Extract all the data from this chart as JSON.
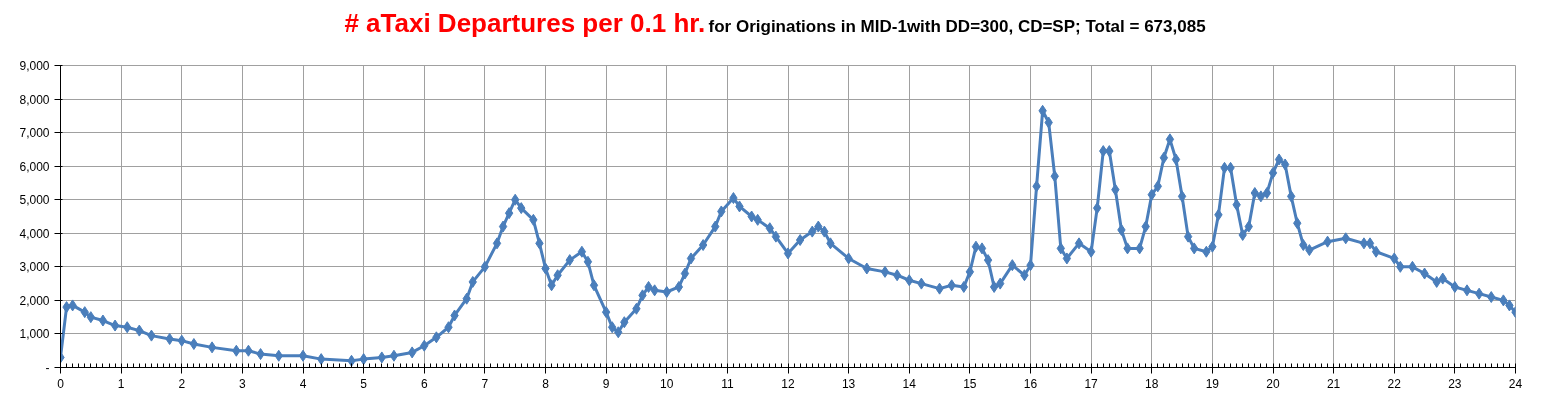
{
  "chart_data": {
    "type": "line",
    "title": "# aTaxi Departures per 0.1 hr.",
    "subtitle": "for Originations in MID-1with DD=300, CD=SP; Total = 673,085",
    "xlim": [
      0,
      24
    ],
    "xticks": [
      0,
      1,
      2,
      3,
      4,
      5,
      6,
      7,
      8,
      9,
      10,
      11,
      12,
      13,
      14,
      15,
      16,
      17,
      18,
      19,
      20,
      21,
      22,
      23,
      24
    ],
    "ylim": [
      0,
      9000
    ],
    "yticks": [
      {
        "value": 0,
        "label": "-"
      },
      {
        "value": 1000,
        "label": "1,000"
      },
      {
        "value": 2000,
        "label": "2,000"
      },
      {
        "value": 3000,
        "label": "3,000"
      },
      {
        "value": 4000,
        "label": "4,000"
      },
      {
        "value": 5000,
        "label": "5,000"
      },
      {
        "value": 6000,
        "label": "6,000"
      },
      {
        "value": 7000,
        "label": "7,000"
      },
      {
        "value": 8000,
        "label": "8,000"
      },
      {
        "value": 9000,
        "label": "9,000"
      }
    ],
    "grid": true,
    "marker": "diamond",
    "line_style": "solid",
    "series": [
      {
        "color": "#4a7ebb",
        "x": [
          0,
          0.1,
          0.2,
          0.4,
          0.5,
          0.7,
          0.9,
          1.1,
          1.3,
          1.5,
          1.8,
          2.0,
          2.2,
          2.5,
          2.9,
          3.1,
          3.3,
          3.6,
          4.0,
          4.3,
          4.8,
          5.0,
          5.3,
          5.5,
          5.8,
          6.0,
          6.2,
          6.4,
          6.5,
          6.7,
          6.8,
          7.0,
          7.2,
          7.3,
          7.4,
          7.5,
          7.6,
          7.8,
          7.9,
          8.0,
          8.1,
          8.2,
          8.4,
          8.6,
          8.7,
          8.8,
          9.0,
          9.1,
          9.2,
          9.3,
          9.5,
          9.6,
          9.7,
          9.8,
          10.0,
          10.2,
          10.3,
          10.4,
          10.6,
          10.8,
          10.9,
          11.1,
          11.2,
          11.4,
          11.5,
          11.7,
          11.8,
          12.0,
          12.2,
          12.4,
          12.5,
          12.6,
          12.7,
          13.0,
          13.3,
          13.6,
          13.8,
          14.0,
          14.2,
          14.5,
          14.7,
          14.9,
          15.0,
          15.1,
          15.2,
          15.3,
          15.4,
          15.5,
          15.7,
          15.9,
          16.0,
          16.1,
          16.2,
          16.3,
          16.4,
          16.5,
          16.6,
          16.8,
          17.0,
          17.1,
          17.2,
          17.3,
          17.4,
          17.5,
          17.6,
          17.8,
          17.9,
          18.0,
          18.1,
          18.2,
          18.3,
          18.4,
          18.5,
          18.6,
          18.7,
          18.9,
          19.0,
          19.1,
          19.2,
          19.3,
          19.4,
          19.5,
          19.6,
          19.7,
          19.8,
          19.9,
          20.0,
          20.1,
          20.2,
          20.3,
          20.4,
          20.5,
          20.6,
          20.9,
          21.2,
          21.5,
          21.6,
          21.7,
          22.0,
          22.1,
          22.3,
          22.5,
          22.7,
          22.8,
          23.0,
          23.2,
          23.4,
          23.6,
          23.8,
          23.9,
          24.0
        ],
        "values": [
          300,
          1800,
          1850,
          1650,
          1500,
          1400,
          1250,
          1200,
          1100,
          950,
          850,
          800,
          700,
          600,
          500,
          500,
          400,
          350,
          350,
          250,
          200,
          250,
          300,
          350,
          450,
          650,
          900,
          1200,
          1550,
          2050,
          2550,
          3000,
          3700,
          4200,
          4600,
          5000,
          4750,
          4400,
          3700,
          2950,
          2450,
          2750,
          3200,
          3450,
          3150,
          2450,
          1650,
          1200,
          1050,
          1350,
          1750,
          2150,
          2400,
          2300,
          2250,
          2400,
          2800,
          3250,
          3650,
          4200,
          4650,
          5050,
          4800,
          4500,
          4400,
          4150,
          3900,
          3400,
          3800,
          4050,
          4200,
          4050,
          3700,
          3250,
          2950,
          2850,
          2750,
          2600,
          2500,
          2350,
          2450,
          2400,
          2850,
          3600,
          3550,
          3200,
          2400,
          2500,
          3050,
          2750,
          3050,
          5400,
          7650,
          7300,
          5700,
          3550,
          3250,
          3700,
          3450,
          4750,
          6450,
          6450,
          5300,
          4100,
          3550,
          3550,
          4200,
          5150,
          5400,
          6250,
          6800,
          6200,
          5100,
          3900,
          3550,
          3450,
          3600,
          4550,
          5950,
          5950,
          4850,
          3950,
          4200,
          5200,
          5100,
          5200,
          5800,
          6200,
          6050,
          5100,
          4300,
          3650,
          3500,
          3750,
          3850,
          3700,
          3700,
          3450,
          3250,
          3000,
          3000,
          2800,
          2550,
          2650,
          2400,
          2300,
          2200,
          2100,
          2000,
          1850,
          1650
        ]
      }
    ]
  }
}
